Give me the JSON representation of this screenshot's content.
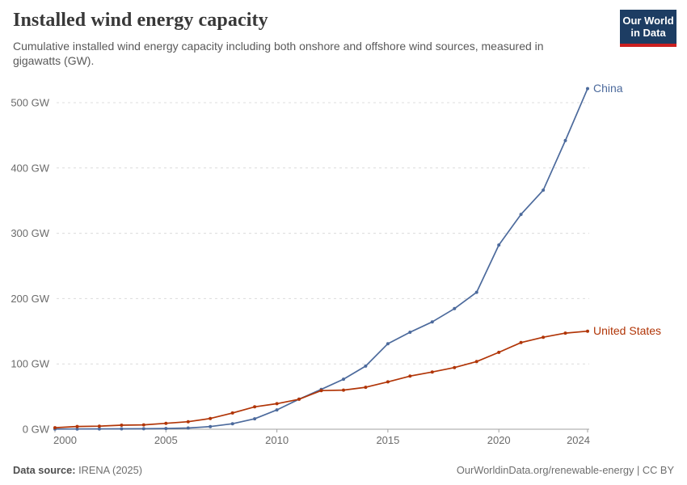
{
  "header": {
    "title": "Installed wind energy capacity",
    "subtitle": "Cumulative installed wind energy capacity including both onshore and offshore wind sources, measured in gigawatts (GW).",
    "logo_line1": "Our World",
    "logo_line2": "in Data"
  },
  "colors": {
    "logo_bg": "#1D3D63",
    "logo_accent": "#CB1F1F",
    "china_line": "#4C6A9C",
    "united_states_line": "#B13507",
    "gridline": "#DCDCDC",
    "axis": "#A1A1A1",
    "tick_text": "#6B6B6B"
  },
  "chart_data": {
    "type": "line",
    "title": "Installed wind energy capacity",
    "unit": "GW",
    "grid": true,
    "legend": "inline-end-labels",
    "ylim": [
      0,
      500
    ],
    "yticks": [
      0,
      100,
      200,
      300,
      400,
      500
    ],
    "xticks": [
      2000,
      2005,
      2010,
      2015,
      2020,
      2024
    ],
    "x": [
      2000,
      2001,
      2002,
      2003,
      2004,
      2005,
      2006,
      2007,
      2008,
      2009,
      2010,
      2011,
      2012,
      2013,
      2014,
      2015,
      2016,
      2017,
      2018,
      2019,
      2020,
      2021,
      2022,
      2023,
      2024
    ],
    "series": [
      {
        "name": "China",
        "color": "#4C6A9C",
        "values": [
          0.3,
          0.4,
          0.5,
          0.6,
          0.8,
          1.1,
          1.9,
          4.1,
          8.4,
          16,
          29.6,
          46.1,
          61,
          76.6,
          96.7,
          131,
          148.5,
          164.4,
          184.7,
          209.6,
          282,
          329,
          366,
          441.9,
          521.5
        ]
      },
      {
        "name": "United States",
        "color": "#B13507",
        "values": [
          2.4,
          4.2,
          4.7,
          6.2,
          6.7,
          9,
          11.5,
          16.5,
          24.9,
          34.3,
          39.1,
          45.9,
          59.1,
          59.9,
          64.2,
          72.5,
          81.3,
          87.6,
          94.4,
          103.6,
          117.7,
          132.7,
          140.8,
          147.2,
          150.1
        ]
      }
    ]
  },
  "footer": {
    "source_label": "Data source:",
    "source_value": "IRENA (2025)",
    "credit": "OurWorldinData.org/renewable-energy | CC BY"
  }
}
